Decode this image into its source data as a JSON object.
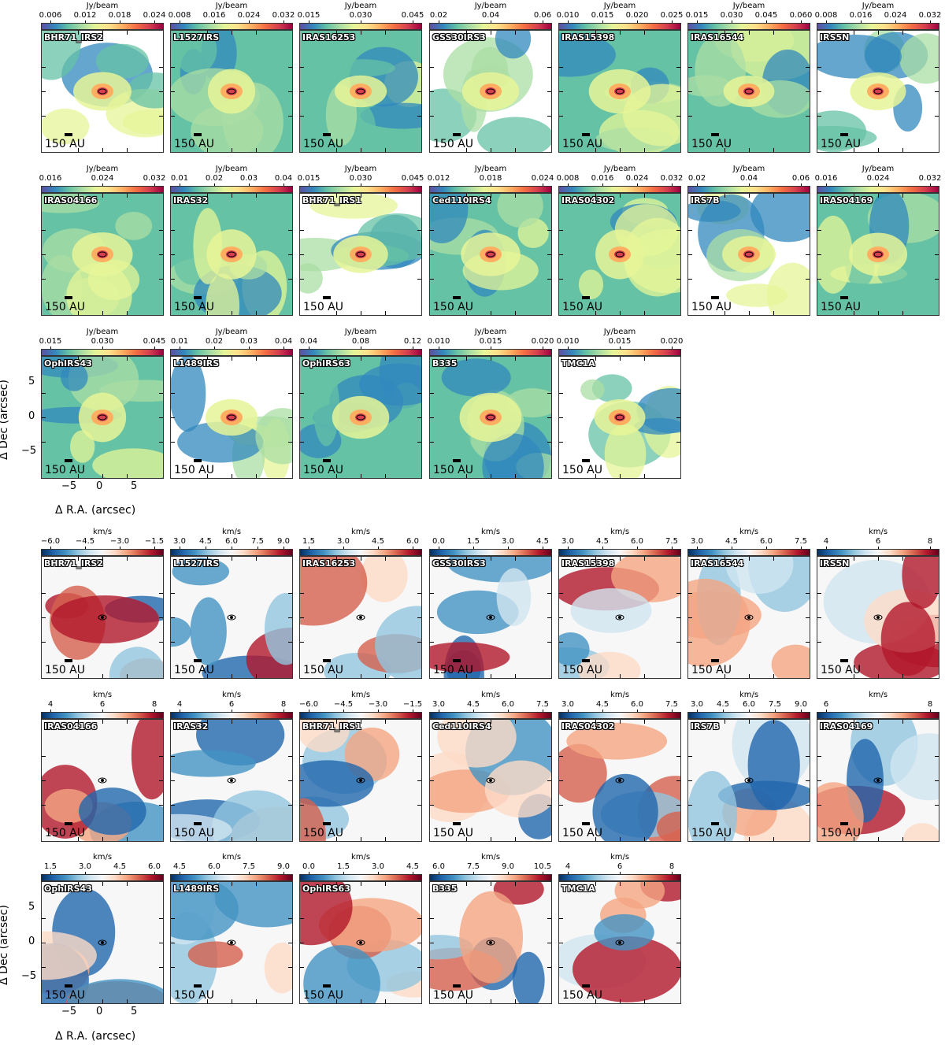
{
  "figure": {
    "intensity_unit": "Jy/beam",
    "velocity_unit": "km/s",
    "scale_label": "150 AU",
    "axis_x_label": "Δ R.A. (arcsec)",
    "axis_y_label": "Δ Dec (arcsec)",
    "axis_x_ticks": [
      "−5",
      "0",
      "5"
    ],
    "axis_y_ticks": [
      "5",
      "0",
      "−5"
    ]
  },
  "intensity_panels": [
    {
      "name": "BHR71_IRS2",
      "ticks": [
        "0.006",
        "0.012",
        "0.018",
        "0.024"
      ]
    },
    {
      "name": "L1527IRS",
      "ticks": [
        "0.008",
        "0.016",
        "0.024",
        "0.032"
      ]
    },
    {
      "name": "IRAS16253",
      "ticks": [
        "0.015",
        "0.030",
        "0.045"
      ]
    },
    {
      "name": "GSS30IRS3",
      "ticks": [
        "0.02",
        "0.04",
        "0.06"
      ]
    },
    {
      "name": "IRAS15398",
      "ticks": [
        "0.010",
        "0.015",
        "0.020",
        "0.025"
      ]
    },
    {
      "name": "IRAS16544",
      "ticks": [
        "0.015",
        "0.030",
        "0.045",
        "0.060"
      ]
    },
    {
      "name": "IRS5N",
      "ticks": [
        "0.008",
        "0.016",
        "0.024",
        "0.032"
      ]
    },
    {
      "name": "IRAS04166",
      "ticks": [
        "0.016",
        "0.024",
        "0.032"
      ]
    },
    {
      "name": "IRAS32",
      "ticks": [
        "0.01",
        "0.02",
        "0.03",
        "0.04"
      ]
    },
    {
      "name": "BHR71_IRS1",
      "ticks": [
        "0.015",
        "0.030",
        "0.045"
      ]
    },
    {
      "name": "Ced110IRS4",
      "ticks": [
        "0.012",
        "0.018",
        "0.024"
      ]
    },
    {
      "name": "IRAS04302",
      "ticks": [
        "0.008",
        "0.016",
        "0.024",
        "0.032"
      ]
    },
    {
      "name": "IRS7B",
      "ticks": [
        "0.02",
        "0.04",
        "0.06"
      ]
    },
    {
      "name": "IRAS04169",
      "ticks": [
        "0.016",
        "0.024",
        "0.032"
      ]
    },
    {
      "name": "OphIRS43",
      "ticks": [
        "0.015",
        "0.030",
        "0.045"
      ]
    },
    {
      "name": "L1489IRS",
      "ticks": [
        "0.01",
        "0.02",
        "0.03",
        "0.04"
      ]
    },
    {
      "name": "OphIRS63",
      "ticks": [
        "0.04",
        "0.08",
        "0.12"
      ]
    },
    {
      "name": "B335",
      "ticks": [
        "0.010",
        "0.015",
        "0.020"
      ]
    },
    {
      "name": "TMC1A",
      "ticks": [
        "0.010",
        "0.015",
        "0.020"
      ]
    }
  ],
  "velocity_panels": [
    {
      "name": "BHR71_IRS2",
      "ticks": [
        "−6.0",
        "−4.5",
        "−3.0",
        "−1.5"
      ]
    },
    {
      "name": "L1527IRS",
      "ticks": [
        "3.0",
        "4.5",
        "6.0",
        "7.5",
        "9.0"
      ]
    },
    {
      "name": "IRAS16253",
      "ticks": [
        "1.5",
        "3.0",
        "4.5",
        "6.0"
      ]
    },
    {
      "name": "GSS30IRS3",
      "ticks": [
        "0.0",
        "1.5",
        "3.0",
        "4.5"
      ]
    },
    {
      "name": "IRAS15398",
      "ticks": [
        "3.0",
        "4.5",
        "6.0",
        "7.5"
      ]
    },
    {
      "name": "IRAS16544",
      "ticks": [
        "3.0",
        "4.5",
        "6.0",
        "7.5"
      ]
    },
    {
      "name": "IRS5N",
      "ticks": [
        "4",
        "6",
        "8"
      ]
    },
    {
      "name": "IRAS04166",
      "ticks": [
        "4",
        "6",
        "8"
      ]
    },
    {
      "name": "IRAS32",
      "ticks": [
        "4",
        "6",
        "8"
      ]
    },
    {
      "name": "BHR71_IRS1",
      "ticks": [
        "−6.0",
        "−4.5",
        "−3.0",
        "−1.5"
      ]
    },
    {
      "name": "Ced110IRS4",
      "ticks": [
        "3.0",
        "4.5",
        "6.0",
        "7.5"
      ]
    },
    {
      "name": "IRAS04302",
      "ticks": [
        "3.0",
        "4.5",
        "6.0",
        "7.5"
      ]
    },
    {
      "name": "IRS7B",
      "ticks": [
        "3.0",
        "4.5",
        "6.0",
        "7.5",
        "9.0"
      ]
    },
    {
      "name": "IRAS04169",
      "ticks": [
        "6",
        "8"
      ]
    },
    {
      "name": "OphIRS43",
      "ticks": [
        "1.5",
        "3.0",
        "4.5",
        "6.0"
      ]
    },
    {
      "name": "L1489IRS",
      "ticks": [
        "4.5",
        "6.0",
        "7.5",
        "9.0"
      ]
    },
    {
      "name": "OphIRS63",
      "ticks": [
        "0.0",
        "1.5",
        "3.0",
        "4.5"
      ]
    },
    {
      "name": "B335",
      "ticks": [
        "6.0",
        "7.5",
        "9.0",
        "10.5"
      ]
    },
    {
      "name": "TMC1A",
      "ticks": [
        "4",
        "6",
        "8"
      ]
    }
  ]
}
